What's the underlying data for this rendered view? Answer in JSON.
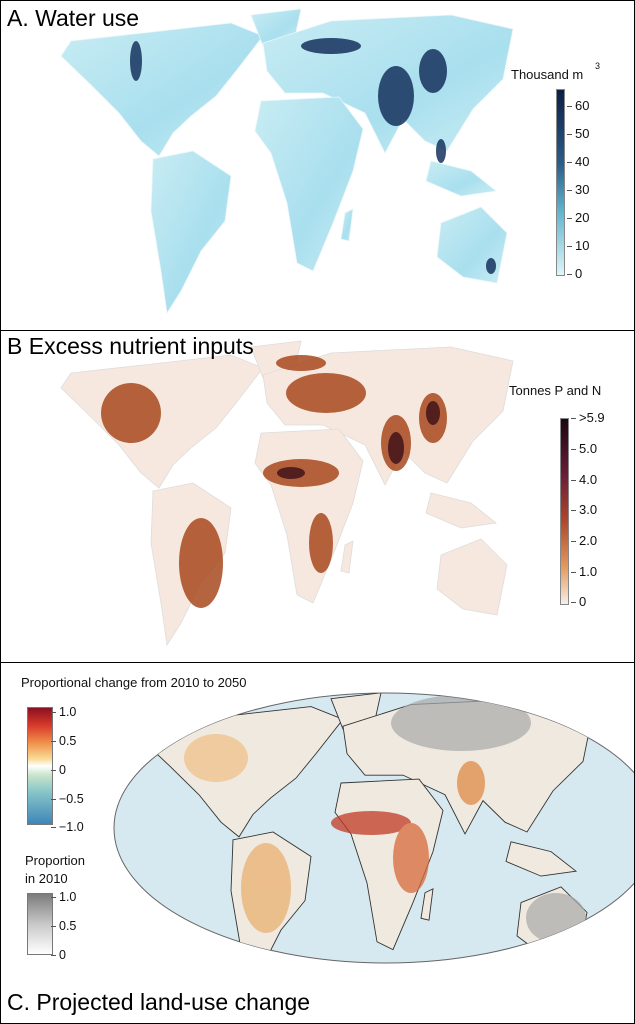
{
  "panels": {
    "a": {
      "title": "A. Water use",
      "legend_title": "Thousand m",
      "legend_sup": "3",
      "ticks": [
        "60",
        "50",
        "40",
        "30",
        "20",
        "10",
        "0"
      ],
      "colors": {
        "low": "#dff4f8",
        "mid": "#5fb3cc",
        "high": "#0b1f45"
      }
    },
    "b": {
      "title": "B Excess nutrient inputs",
      "legend_title": "Tonnes P and N",
      "ticks": [
        ">5.9",
        "5.0",
        "4.0",
        "3.0",
        "2.0",
        "1.0",
        "0"
      ],
      "colors": {
        "low": "#f7ece4",
        "mid": "#c0622a",
        "high": "#2a0a14"
      }
    },
    "c": {
      "title": "C. Projected land-use change",
      "legend1_title": "Proportional change from 2010 to 2050",
      "legend1_ticks": [
        "1.0",
        "0.5",
        "0",
        "−0.5",
        "−1.0"
      ],
      "legend2_title_line1": "Proportion",
      "legend2_title_line2": "in 2010",
      "legend2_ticks": [
        "1.0",
        "0.5",
        "0"
      ],
      "colors": {
        "ocean": "#d6e9f0",
        "increase": "#e8a060",
        "strong": "#a81e1e",
        "decrease": "#4d8fbf",
        "existing": "#9a9a9a"
      }
    }
  }
}
